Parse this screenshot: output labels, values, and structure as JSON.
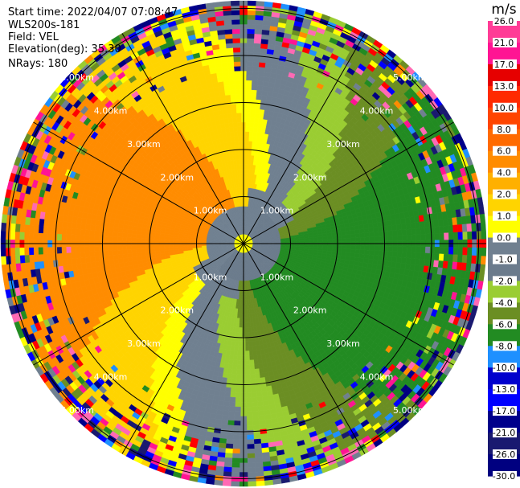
{
  "info": {
    "start_time": "Start time: 2022/04/07 07:08:47",
    "instrument": "WLS200s-181",
    "field": "Field: VEL",
    "elevation": "Elevation(deg): 35.30",
    "nrays": "NRays: 180"
  },
  "colorbar": {
    "unit": "m/s",
    "ticks": [
      "26.0",
      "21.0",
      "17.0",
      "13.0",
      "10.0",
      "8.0",
      "6.0",
      "4.0",
      "2.0",
      "1.0",
      "0.0",
      "-1.0",
      "-2.0",
      "-4.0",
      "-6.0",
      "-8.0",
      "-10.0",
      "-13.0",
      "-17.0",
      "-21.0",
      "-26.0",
      "-30.0"
    ],
    "colors": [
      "#ff3c96",
      "#ff1493",
      "#e60000",
      "#ff2a00",
      "#ff4500",
      "#ff6a00",
      "#ff8c00",
      "#ffb000",
      "#ffd400",
      "#ffff00",
      "#708090",
      "#6b7b8c",
      "#9acd32",
      "#6b8e23",
      "#228b22",
      "#1e90ff",
      "#0000cd",
      "#0000ff",
      "#00008b",
      "#191970",
      "#000080"
    ]
  },
  "chart_data": {
    "type": "ppi",
    "field": "VEL",
    "unit": "m/s",
    "range_rings_km": [
      1.0,
      2.0,
      3.0,
      4.0,
      5.0
    ],
    "ring_labels": [
      "1.00km",
      "2.00km",
      "3.00km",
      "4.00km",
      "5.00km"
    ],
    "spoke_angles_deg": [
      0,
      30,
      60,
      90,
      120,
      150,
      180,
      210,
      240,
      270,
      300,
      330
    ],
    "description_free_pattern": "approaching velocities (negative, green) to the south-east, receding (positive, yellow/orange) to the north-west"
  }
}
